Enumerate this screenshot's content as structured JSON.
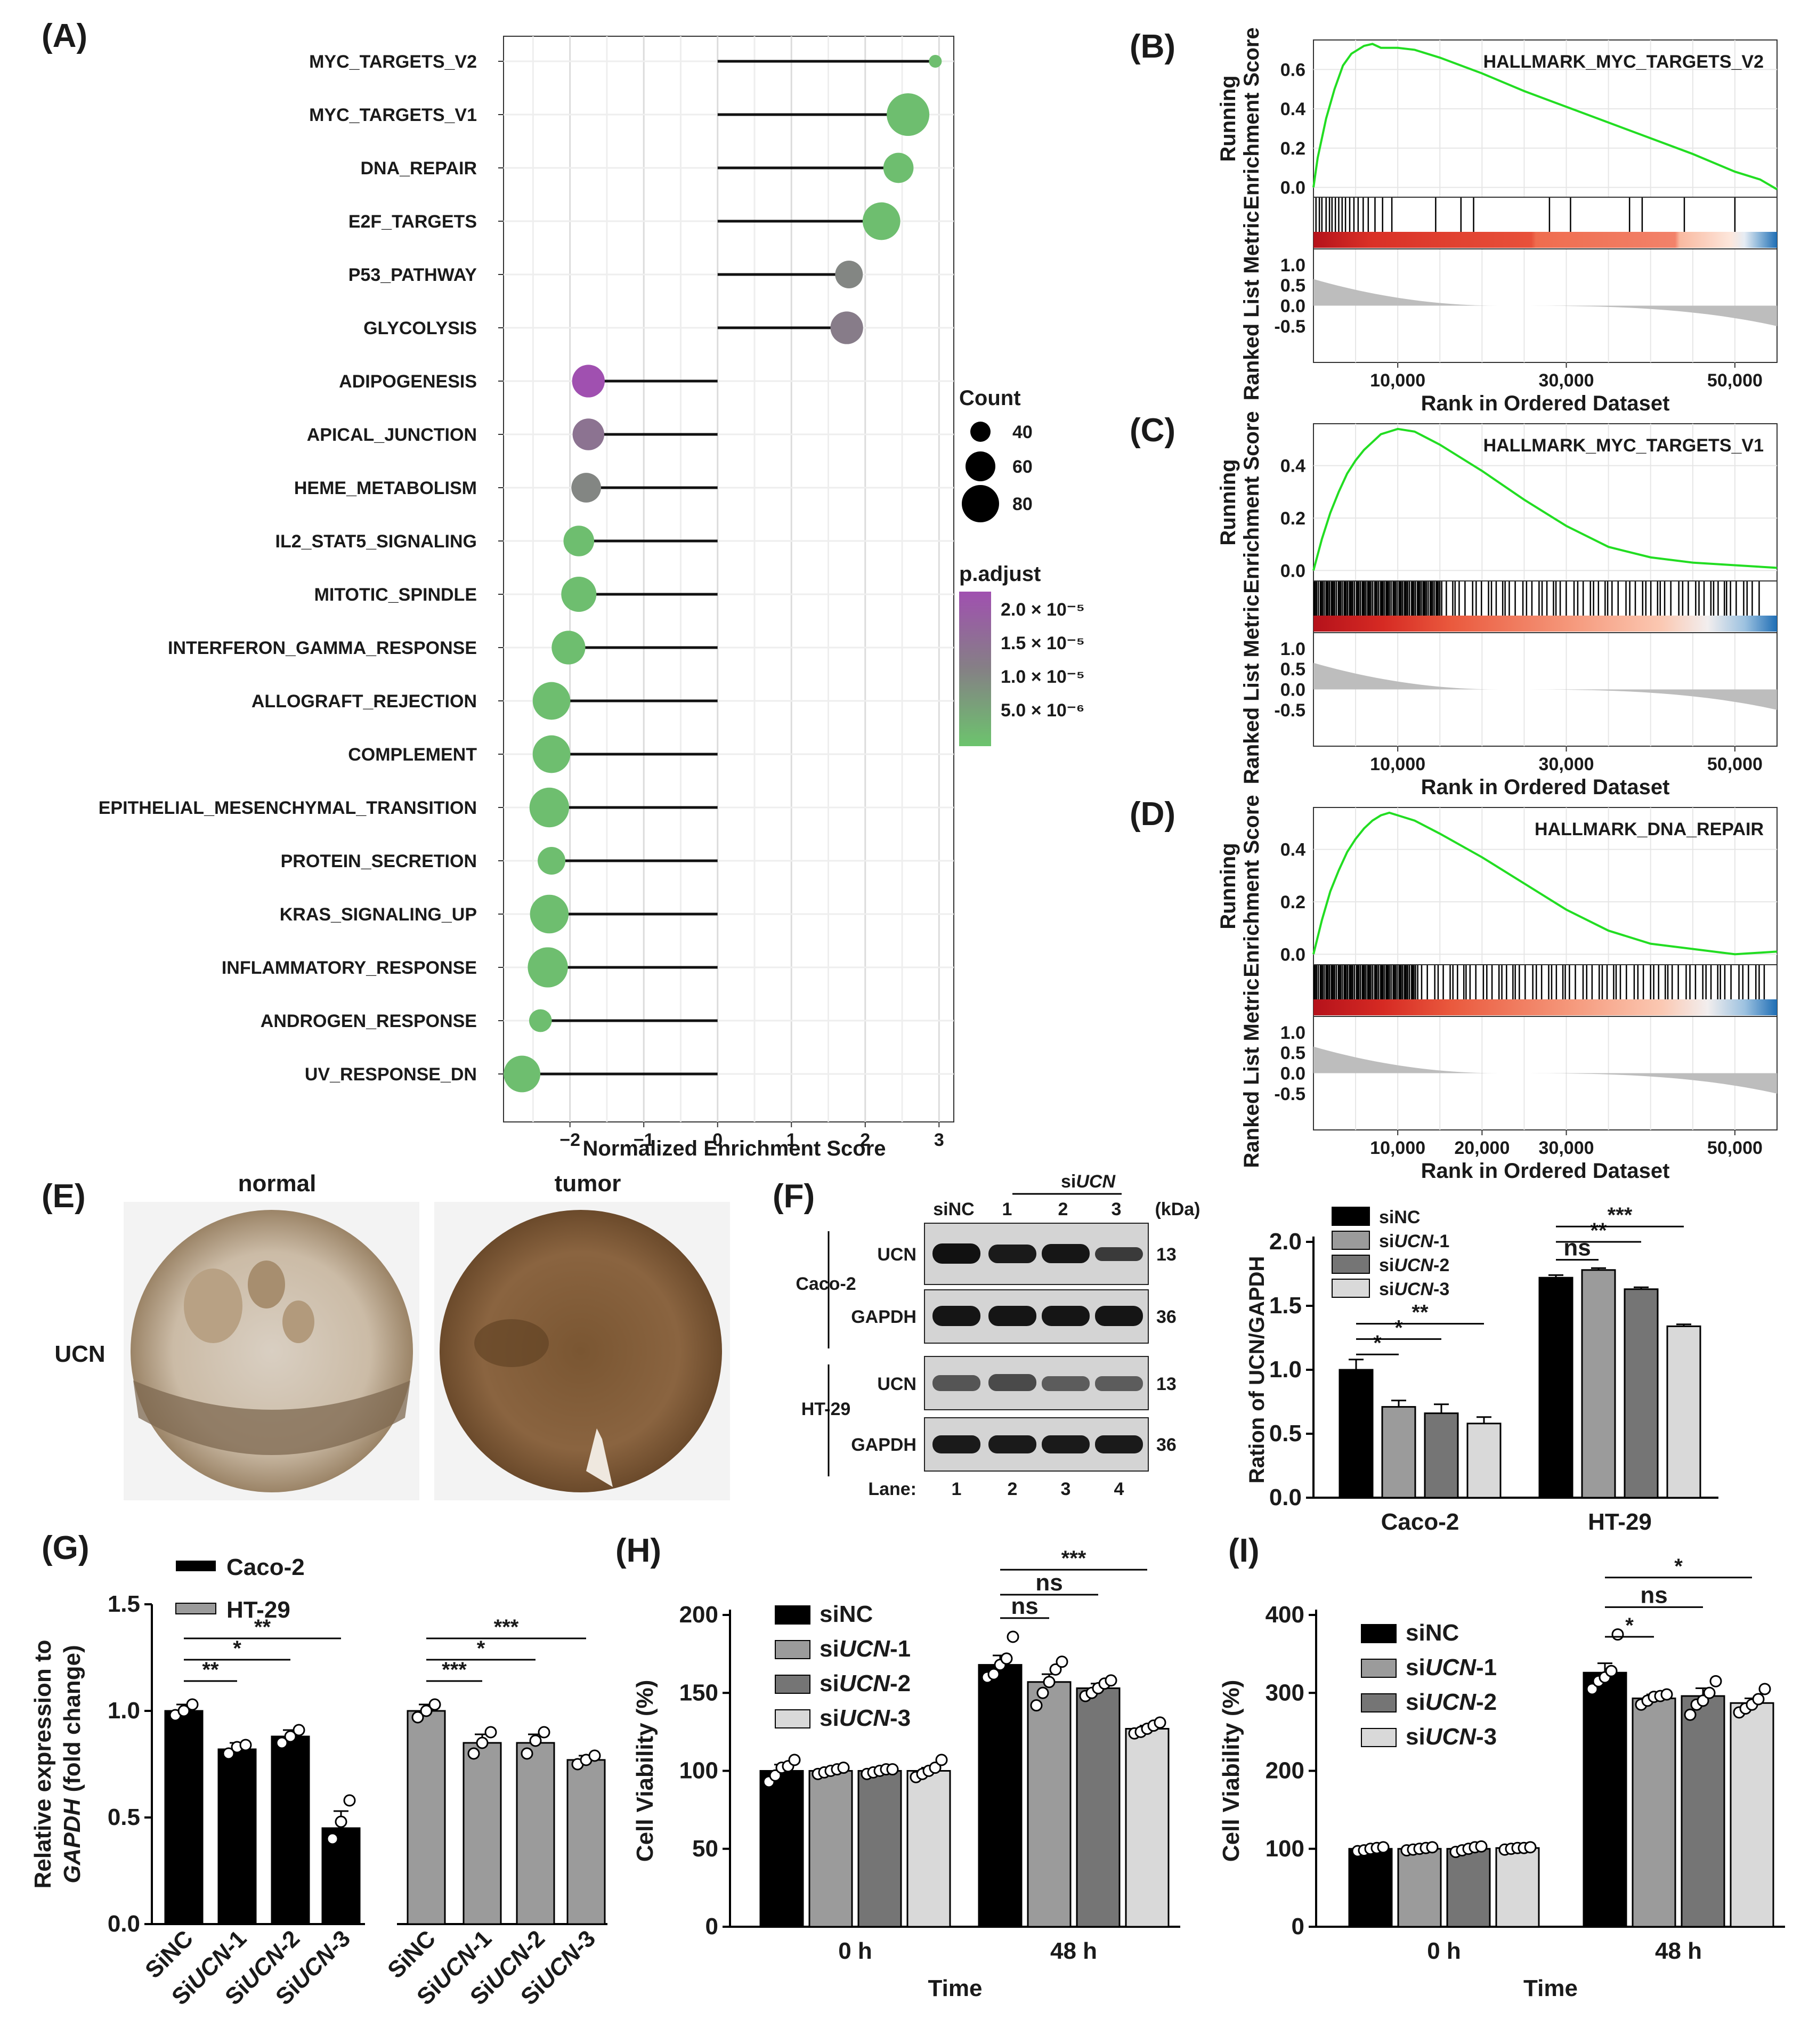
{
  "colors": {
    "green": "#6cc46d",
    "purple": "#a050b0",
    "gray": "#808080",
    "black": "#000000",
    "bar_sinc": "#000000",
    "bar_si1": "#9b9b9b",
    "bar_si2": "#757575",
    "bar_si3": "#d9d9d9",
    "es_line": "#22dd22",
    "metric_fill": "#bdbdbd"
  },
  "panelA": {
    "label": "(A)",
    "xlabel": "Normalized Enrichment Score",
    "xticks": [
      "−2",
      "−1",
      "0",
      "1",
      "2",
      "3"
    ],
    "legend": {
      "count_title": "Count",
      "count_labels": [
        "40",
        "60",
        "80"
      ],
      "padj_title": "p.adjust",
      "padj_labels": [
        "2.0 × 10⁻⁵",
        "1.5 × 10⁻⁵",
        "1.0 × 10⁻⁵",
        "5.0 × 10⁻⁶"
      ]
    }
  },
  "chart_data": [
    {
      "panel": "A",
      "type": "scatter",
      "title": "",
      "xlabel": "Normalized Enrichment Score",
      "xlim": [
        -2.9,
        3.2
      ],
      "categories": [
        "MYC_TARGETS_V2",
        "MYC_TARGETS_V1",
        "DNA_REPAIR",
        "E2F_TARGETS",
        "P53_PATHWAY",
        "GLYCOLYSIS",
        "ADIPOGENESIS",
        "APICAL_JUNCTION",
        "HEME_METABOLISM",
        "IL2_STAT5_SIGNALING",
        "MITOTIC_SPINDLE",
        "INTERFERON_GAMMA_RESPONSE",
        "ALLOGRAFT_REJECTION",
        "COMPLEMENT",
        "EPITHELIAL_MESENCHYMAL_TRANSITION",
        "PROTEIN_SECRETION",
        "KRAS_SIGNALING_UP",
        "INFLAMMATORY_RESPONSE",
        "ANDROGEN_RESPONSE",
        "UV_RESPONSE_DN"
      ],
      "nes": [
        2.95,
        2.58,
        2.45,
        2.22,
        1.78,
        1.75,
        -1.75,
        -1.75,
        -1.78,
        -1.88,
        -1.88,
        -2.02,
        -2.25,
        -2.25,
        -2.28,
        -2.25,
        -2.28,
        -2.3,
        -2.4,
        -2.65
      ],
      "count": [
        20,
        80,
        55,
        70,
        50,
        60,
        60,
        58,
        54,
        56,
        65,
        62,
        70,
        70,
        74,
        50,
        72,
        75,
        40,
        68
      ],
      "padj": [
        1e-06,
        1e-06,
        1e-06,
        1e-06,
        1e-05,
        1.2e-05,
        2.2e-05,
        1.4e-05,
        1e-05,
        1e-06,
        1e-06,
        1e-06,
        1e-06,
        1e-06,
        1e-06,
        1e-06,
        1e-06,
        1e-06,
        1e-06,
        1e-06
      ]
    },
    {
      "panel": "B",
      "type": "line",
      "title": "HALLMARK_MYC_TARGETS_V2",
      "ylabel_top": "Running",
      "ylabel_top2": "Enrichment Score",
      "ylabel_bottom": "Ranked List Metric",
      "xlabel": "Rank in Ordered Dataset",
      "xlim": [
        0,
        55000
      ],
      "xticks": [
        10000,
        30000,
        50000
      ],
      "xticklabels": [
        "10,000",
        "30,000",
        "50,000"
      ],
      "es_ylim": [
        -0.05,
        0.75
      ],
      "es_yticks": [
        "0.6",
        "0.4",
        "0.2",
        "0.0"
      ],
      "metric_yticks": [
        "1.0",
        "0.5",
        "0.0",
        "-0.5"
      ],
      "es_x": [
        0,
        500,
        1500,
        2500,
        3500,
        4500,
        6000,
        7000,
        8000,
        10000,
        12000,
        15000,
        20000,
        25000,
        30000,
        35000,
        40000,
        45000,
        50000,
        53000,
        55000
      ],
      "es_y": [
        0.0,
        0.15,
        0.35,
        0.5,
        0.62,
        0.68,
        0.72,
        0.73,
        0.71,
        0.71,
        0.7,
        0.66,
        0.58,
        0.49,
        0.41,
        0.33,
        0.25,
        0.17,
        0.08,
        0.04,
        -0.01
      ],
      "hits": [
        300,
        700,
        1000,
        1500,
        1900,
        2200,
        2600,
        3000,
        3400,
        3800,
        4300,
        4800,
        5300,
        5900,
        6500,
        7300,
        8200,
        9300,
        14500,
        17500,
        19000,
        28000,
        30500,
        37500,
        39000,
        44000,
        50000
      ]
    },
    {
      "panel": "C",
      "type": "line",
      "title": "HALLMARK_MYC_TARGETS_V1",
      "ylabel_top": "Running",
      "ylabel_top2": "Enrichment Score",
      "ylabel_bottom": "Ranked List Metric",
      "xlabel": "Rank in Ordered Dataset",
      "xlim": [
        0,
        55000
      ],
      "xticks": [
        10000,
        30000,
        50000
      ],
      "xticklabels": [
        "10,000",
        "30,000",
        "50,000"
      ],
      "es_ylim": [
        -0.04,
        0.56
      ],
      "es_yticks": [
        "0.4",
        "0.2",
        "0.0"
      ],
      "metric_yticks": [
        "1.0",
        "0.5",
        "0.0",
        "-0.5"
      ],
      "es_x": [
        0,
        1000,
        2000,
        3000,
        4000,
        5000,
        6000,
        7000,
        8000,
        9000,
        10000,
        12000,
        15000,
        20000,
        25000,
        30000,
        35000,
        40000,
        45000,
        50000,
        55000
      ],
      "es_y": [
        0.0,
        0.12,
        0.22,
        0.3,
        0.37,
        0.42,
        0.46,
        0.49,
        0.52,
        0.53,
        0.54,
        0.53,
        0.48,
        0.38,
        0.27,
        0.17,
        0.09,
        0.05,
        0.03,
        0.02,
        0.01
      ],
      "hits_dense_until": 15000,
      "hits_sparse_until": 53000
    },
    {
      "panel": "D",
      "type": "line",
      "title": "HALLMARK_DNA_REPAIR",
      "ylabel_top": "Running",
      "ylabel_top2": "Enrichment Score",
      "ylabel_bottom": "Ranked List Metric",
      "xlabel": "Rank in Ordered Dataset",
      "xlim": [
        0,
        55000
      ],
      "xticks": [
        10000,
        20000,
        30000,
        50000
      ],
      "xticklabels": [
        "10,000",
        "20,000",
        "30,000",
        "50,000"
      ],
      "es_ylim": [
        -0.04,
        0.56
      ],
      "es_yticks": [
        "0.4",
        "0.2",
        "0.0"
      ],
      "metric_yticks": [
        "1.0",
        "0.5",
        "0.0",
        "-0.5"
      ],
      "es_x": [
        0,
        1000,
        2000,
        3000,
        4000,
        5000,
        6000,
        7000,
        8000,
        9000,
        10000,
        12000,
        15000,
        20000,
        25000,
        30000,
        35000,
        40000,
        45000,
        50000,
        55000
      ],
      "es_y": [
        0.0,
        0.13,
        0.24,
        0.32,
        0.39,
        0.44,
        0.48,
        0.51,
        0.53,
        0.54,
        0.53,
        0.51,
        0.46,
        0.37,
        0.27,
        0.17,
        0.09,
        0.04,
        0.02,
        0.0,
        0.01
      ],
      "hits_dense_until": 12000,
      "hits_sparse_until": 54000
    },
    {
      "panel": "F",
      "type": "bar",
      "ylabel": "Ration of UCN/GAPDH",
      "ylim": [
        0,
        2.0
      ],
      "yticks": [
        "0.0",
        "0.5",
        "1.0",
        "1.5",
        "2.0"
      ],
      "categories": [
        "Caco-2",
        "HT-29"
      ],
      "series": [
        {
          "name": "siNC",
          "values": [
            1.0,
            1.72
          ],
          "err": [
            0.08,
            0.02
          ]
        },
        {
          "name": "siUCN-1",
          "values": [
            0.71,
            1.78
          ],
          "err": [
            0.05,
            0.015
          ]
        },
        {
          "name": "siUCN-2",
          "values": [
            0.66,
            1.63
          ],
          "err": [
            0.07,
            0.015
          ]
        },
        {
          "name": "siUCN-3",
          "values": [
            0.58,
            1.34
          ],
          "err": [
            0.05,
            0.015
          ]
        }
      ],
      "sig": [
        {
          "group": 0,
          "a": 0,
          "b": 1,
          "label": "*",
          "y": 1.12
        },
        {
          "group": 0,
          "a": 0,
          "b": 2,
          "label": "*",
          "y": 1.24
        },
        {
          "group": 0,
          "a": 0,
          "b": 3,
          "label": "**",
          "y": 1.36
        },
        {
          "group": 1,
          "a": 0,
          "b": 1,
          "label": "ns",
          "y": 1.86
        },
        {
          "group": 1,
          "a": 0,
          "b": 2,
          "label": "**",
          "y": 2.0
        },
        {
          "group": 1,
          "a": 0,
          "b": 3,
          "label": "***",
          "y": 2.12
        }
      ]
    },
    {
      "panel": "G",
      "type": "bar",
      "ylabel": "Relative expression to",
      "ylabel2": "GAPDH",
      "ylabel3": "(fold change)",
      "ylim": [
        0,
        1.5
      ],
      "yticks": [
        "0.0",
        "0.5",
        "1.0",
        "1.5"
      ],
      "groups": [
        "Caco-2",
        "HT-29"
      ],
      "categories": [
        "SiNC",
        "SiUCN-1",
        "SiUCN-2",
        "SiUCN-3",
        "SiNC",
        "SiUCN-1",
        "SiUCN-2",
        "SiUCN-3"
      ],
      "values": [
        1.0,
        0.82,
        0.88,
        0.45,
        1.0,
        0.85,
        0.85,
        0.77
      ],
      "err": [
        0.03,
        0.03,
        0.03,
        0.08,
        0.03,
        0.04,
        0.04,
        0.02
      ],
      "points": [
        [
          0.98,
          1.0,
          1.03
        ],
        [
          0.8,
          0.83,
          0.84
        ],
        [
          0.85,
          0.88,
          0.91
        ],
        [
          0.4,
          0.48,
          0.58
        ],
        [
          0.97,
          1.0,
          1.03
        ],
        [
          0.8,
          0.85,
          0.9
        ],
        [
          0.8,
          0.86,
          0.9
        ],
        [
          0.75,
          0.77,
          0.79
        ]
      ],
      "sig": [
        {
          "a": 0,
          "b": 1,
          "label": "**",
          "y": 1.14
        },
        {
          "a": 0,
          "b": 2,
          "label": "*",
          "y": 1.24
        },
        {
          "a": 0,
          "b": 3,
          "label": "**",
          "y": 1.34
        },
        {
          "a": 4,
          "b": 5,
          "label": "***",
          "y": 1.14
        },
        {
          "a": 4,
          "b": 6,
          "label": "*",
          "y": 1.24
        },
        {
          "a": 4,
          "b": 7,
          "label": "***",
          "y": 1.34
        }
      ]
    },
    {
      "panel": "H",
      "type": "bar",
      "ylabel": "Cell Viability (%)",
      "xlabel": "Time",
      "ylim": [
        0,
        200
      ],
      "yticks": [
        "0",
        "50",
        "100",
        "150",
        "200"
      ],
      "categories": [
        "0 h",
        "48 h"
      ],
      "series": [
        {
          "name": "siNC",
          "values": [
            100,
            168
          ],
          "err": [
            4,
            6
          ]
        },
        {
          "name": "siUCN-1",
          "values": [
            100,
            157
          ],
          "err": [
            2,
            5
          ]
        },
        {
          "name": "siUCN-2",
          "values": [
            100,
            153
          ],
          "err": [
            2,
            3
          ]
        },
        {
          "name": "siUCN-3",
          "values": [
            100,
            127
          ],
          "err": [
            2,
            2
          ]
        }
      ],
      "points": [
        [
          [
            93,
            97,
            102,
            103,
            107
          ],
          [
            160,
            162,
            168,
            172,
            186
          ]
        ],
        [
          [
            98,
            99,
            100,
            101,
            102
          ],
          [
            142,
            150,
            157,
            165,
            170
          ]
        ],
        [
          [
            98,
            99,
            100,
            101,
            101
          ],
          [
            148,
            150,
            153,
            156,
            158
          ]
        ],
        [
          [
            96,
            98,
            100,
            102,
            107
          ],
          [
            124,
            125,
            127,
            129,
            131
          ]
        ]
      ],
      "sig": [
        {
          "group": 1,
          "a": 0,
          "b": 1,
          "label": "ns",
          "y": 198
        },
        {
          "group": 1,
          "a": 0,
          "b": 2,
          "label": "ns",
          "y": 213
        },
        {
          "group": 1,
          "a": 0,
          "b": 3,
          "label": "***",
          "y": 229
        }
      ]
    },
    {
      "panel": "I",
      "type": "bar",
      "ylabel": "Cell Viability (%)",
      "xlabel": "Time",
      "ylim": [
        0,
        400
      ],
      "yticks": [
        "0",
        "100",
        "200",
        "300",
        "400"
      ],
      "categories": [
        "0 h",
        "48 h"
      ],
      "series": [
        {
          "name": "siNC",
          "values": [
            100,
            326
          ],
          "err": [
            2,
            12
          ]
        },
        {
          "name": "siUCN-1",
          "values": [
            100,
            293
          ],
          "err": [
            2,
            5
          ]
        },
        {
          "name": "siUCN-2",
          "values": [
            100,
            296
          ],
          "err": [
            3,
            10
          ]
        },
        {
          "name": "siUCN-3",
          "values": [
            101,
            287
          ],
          "err": [
            2,
            6
          ]
        }
      ],
      "points": [
        [
          [
            97,
            98,
            100,
            101,
            102
          ],
          [
            305,
            315,
            320,
            328,
            375
          ]
        ],
        [
          [
            98,
            99,
            100,
            101,
            102
          ],
          [
            285,
            290,
            295,
            296,
            298
          ]
        ],
        [
          [
            96,
            98,
            100,
            102,
            103
          ],
          [
            272,
            285,
            290,
            300,
            315
          ]
        ],
        [
          [
            99,
            100,
            101,
            101,
            102
          ],
          [
            275,
            280,
            285,
            292,
            305
          ]
        ]
      ],
      "sig": [
        {
          "group": 1,
          "a": 0,
          "b": 1,
          "label": "*",
          "y": 372
        },
        {
          "group": 1,
          "a": 0,
          "b": 2,
          "label": "ns",
          "y": 410
        },
        {
          "group": 1,
          "a": 0,
          "b": 3,
          "label": "*",
          "y": 448
        }
      ]
    }
  ],
  "panelB": {
    "label": "(B)"
  },
  "panelC": {
    "label": "(C)"
  },
  "panelD": {
    "label": "(D)"
  },
  "panelE": {
    "label": "(E)",
    "col_normal": "normal",
    "col_tumor": "tumor",
    "row_label": "UCN"
  },
  "panelF": {
    "label": "(F)",
    "kda": "(kDa)",
    "lane_label": "Lane:",
    "lanes": [
      "1",
      "2",
      "3",
      "4"
    ],
    "header_sinc": "siNC",
    "header_siucn_pre": "si",
    "header_siucn_it": "UCN",
    "header_nums": [
      "1",
      "2",
      "3"
    ],
    "cell_caco": "Caco-2",
    "cell_ht": "HT-29",
    "band_ucn": "UCN",
    "band_gapdh": "GAPDH",
    "kda_ucn": "13",
    "kda_gapdh": "36",
    "legend": [
      {
        "pre": "siNC",
        "it": "",
        "post": ""
      },
      {
        "pre": "si",
        "it": "UCN",
        "post": "-1"
      },
      {
        "pre": "si",
        "it": "UCN",
        "post": "-2"
      },
      {
        "pre": "si",
        "it": "UCN",
        "post": "-3"
      }
    ],
    "bar_xticks": [
      "Caco-2",
      "HT-29"
    ]
  },
  "panelG": {
    "label": "(G)",
    "legend": [
      "Caco-2",
      "HT-29"
    ],
    "xlabels": [
      {
        "pre": "SiNC",
        "it": "",
        "post": ""
      },
      {
        "pre": "Si",
        "it": "UCN",
        "post": "-1"
      },
      {
        "pre": "Si",
        "it": "UCN",
        "post": "-2"
      },
      {
        "pre": "Si",
        "it": "UCN",
        "post": "-3"
      },
      {
        "pre": "SiNC",
        "it": "",
        "post": ""
      },
      {
        "pre": "Si",
        "it": "UCN",
        "post": "-1"
      },
      {
        "pre": "Si",
        "it": "UCN",
        "post": "-2"
      },
      {
        "pre": "Si",
        "it": "UCN",
        "post": "-3"
      }
    ]
  },
  "panelH": {
    "label": "(H)",
    "legend": [
      {
        "pre": "siNC",
        "it": "",
        "post": ""
      },
      {
        "pre": "si",
        "it": "UCN",
        "post": "-1"
      },
      {
        "pre": "si",
        "it": "UCN",
        "post": "-2"
      },
      {
        "pre": "si",
        "it": "UCN",
        "post": "-3"
      }
    ]
  },
  "panelI": {
    "label": "(I)",
    "legend": [
      {
        "pre": "siNC",
        "it": "",
        "post": ""
      },
      {
        "pre": "si",
        "it": "UCN",
        "post": "-1"
      },
      {
        "pre": "si",
        "it": "UCN",
        "post": "-2"
      },
      {
        "pre": "si",
        "it": "UCN",
        "post": "-3"
      }
    ]
  }
}
